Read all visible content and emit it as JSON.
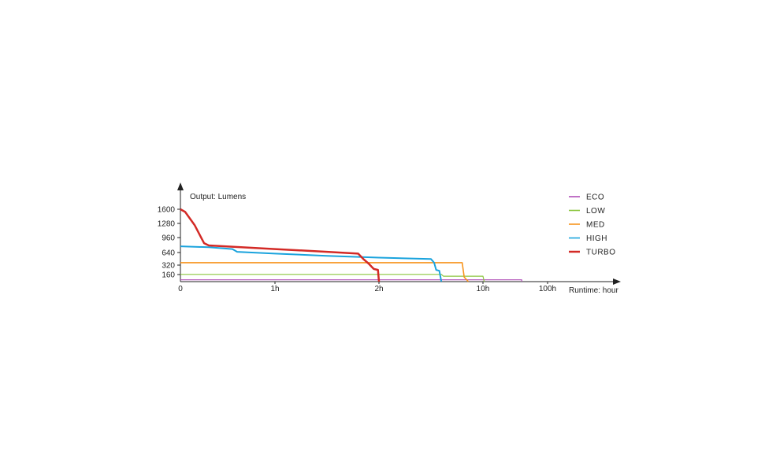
{
  "chart_data": {
    "type": "line",
    "ylabel": "Output: Lumens",
    "xlabel": "Runtime: hour",
    "y_ticks": [
      "1600",
      "1280",
      "960",
      "640",
      "320",
      "160"
    ],
    "x_ticks": [
      "0",
      "1h",
      "2h",
      "10h",
      "100h"
    ],
    "legend_position": "top-right",
    "grid": false,
    "series": [
      {
        "name": "ECO",
        "color": "#b04fb8",
        "width": 1.2,
        "points": [
          [
            0,
            40
          ],
          [
            1,
            40
          ],
          [
            2,
            40
          ],
          [
            3,
            40
          ],
          [
            3.6,
            40
          ],
          [
            3.6,
            0
          ]
        ]
      },
      {
        "name": "LOW",
        "color": "#8cc63f",
        "width": 1.2,
        "points": [
          [
            0,
            160
          ],
          [
            1,
            160
          ],
          [
            2,
            160
          ],
          [
            2.6,
            160
          ],
          [
            2.62,
            120
          ],
          [
            2.9,
            120
          ],
          [
            3.0,
            120
          ],
          [
            3.02,
            0
          ]
        ]
      },
      {
        "name": "MED",
        "color": "#f7941d",
        "width": 1.6,
        "points": [
          [
            0,
            420
          ],
          [
            2.8,
            420
          ],
          [
            2.82,
            100
          ],
          [
            2.86,
            0
          ]
        ]
      },
      {
        "name": "HIGH",
        "color": "#1aa3dd",
        "width": 2,
        "points": [
          [
            0,
            780
          ],
          [
            0.3,
            760
          ],
          [
            0.55,
            720
          ],
          [
            0.6,
            660
          ],
          [
            1.0,
            620
          ],
          [
            1.5,
            570
          ],
          [
            2.0,
            530
          ],
          [
            2.5,
            500
          ],
          [
            2.53,
            420
          ],
          [
            2.55,
            260
          ],
          [
            2.58,
            240
          ],
          [
            2.6,
            0
          ]
        ]
      },
      {
        "name": "TURBO",
        "color": "#d32a26",
        "width": 2.5,
        "points": [
          [
            0,
            1600
          ],
          [
            0.05,
            1540
          ],
          [
            0.15,
            1250
          ],
          [
            0.25,
            850
          ],
          [
            0.3,
            800
          ],
          [
            1.0,
            720
          ],
          [
            1.5,
            660
          ],
          [
            1.8,
            620
          ],
          [
            1.85,
            500
          ],
          [
            1.9,
            400
          ],
          [
            1.95,
            280
          ],
          [
            1.99,
            260
          ],
          [
            2.0,
            0
          ]
        ]
      }
    ]
  }
}
